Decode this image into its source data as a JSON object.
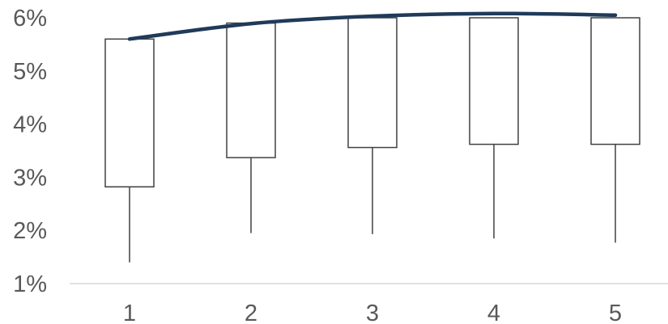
{
  "chart_data": {
    "type": "boxplot",
    "categories": [
      "1",
      "2",
      "3",
      "4",
      "5"
    ],
    "series": [
      {
        "box_low": [
          2.82,
          3.37,
          3.56,
          3.62,
          3.62
        ],
        "box_high": [
          5.6,
          5.9,
          6.0,
          6.0,
          6.0
        ],
        "whisker_low": [
          1.4,
          1.95,
          1.93,
          1.85,
          1.77
        ]
      },
      {
        "type": "line",
        "values": [
          5.6,
          5.89,
          6.03,
          6.08,
          6.05
        ]
      }
    ],
    "y_ticks": [
      "1%",
      "2%",
      "3%",
      "4%",
      "5%",
      "6%"
    ],
    "x_ticks": [
      "1",
      "2",
      "3",
      "4",
      "5"
    ],
    "ylim": [
      1,
      6
    ],
    "y_unit": "%",
    "grid": false,
    "colors": {
      "box_stroke": "#404040",
      "whisker": "#404040",
      "line": "#203a5a",
      "axis": "#d9d9d9",
      "tick_text": "#595959"
    }
  }
}
